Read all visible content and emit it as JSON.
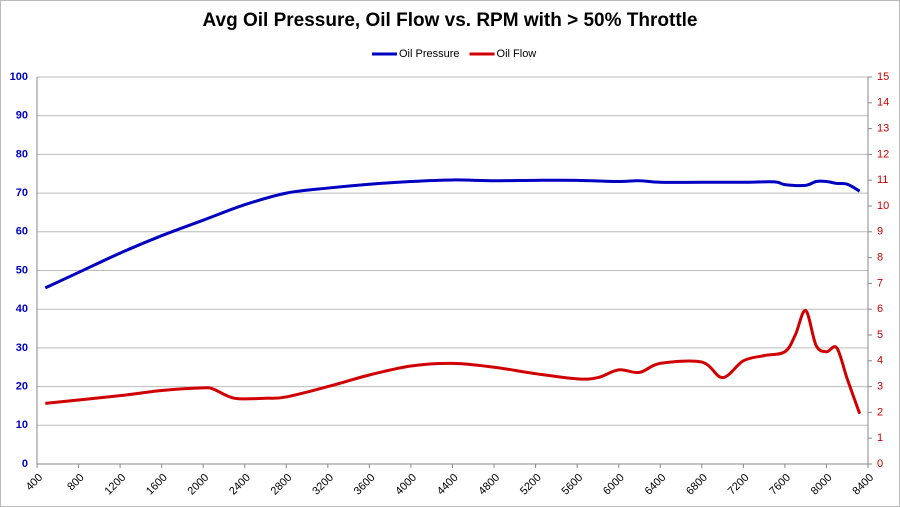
{
  "chart_data": {
    "type": "line",
    "title": "Avg Oil Pressure, Oil Flow vs. RPM with > 50% Throttle",
    "xlim": [
      400,
      8400
    ],
    "xticks": [
      400,
      800,
      1200,
      1600,
      2000,
      2400,
      2800,
      3200,
      3600,
      4000,
      4400,
      4800,
      5200,
      5600,
      6000,
      6400,
      6800,
      7200,
      7600,
      8000,
      8400
    ],
    "ylim": [
      0,
      100
    ],
    "yticks": [
      0,
      10,
      20,
      30,
      40,
      50,
      60,
      70,
      80,
      90,
      100
    ],
    "y2lim": [
      0,
      15
    ],
    "y2ticks": [
      0,
      1,
      2,
      3,
      4,
      5,
      6,
      7,
      8,
      9,
      10,
      11,
      12,
      13,
      14,
      15
    ],
    "grid": true,
    "legend": "top",
    "series": [
      {
        "name": "Oil Pressure",
        "color": "#0000c0",
        "x": [
          480,
          800,
          1200,
          1600,
          2000,
          2400,
          2800,
          3200,
          3600,
          4000,
          4400,
          4800,
          5200,
          5600,
          6000,
          6200,
          6400,
          6800,
          7200,
          7500,
          7600,
          7800,
          7900,
          8000,
          8100,
          8200,
          8320
        ],
        "values": [
          45.5,
          49.5,
          54.5,
          59,
          63,
          67,
          70,
          71.3,
          72.3,
          73,
          73.4,
          73.2,
          73.3,
          73.3,
          73,
          73.2,
          72.8,
          72.8,
          72.8,
          72.9,
          72.2,
          72,
          73,
          73,
          72.5,
          72.3,
          70.5
        ]
      },
      {
        "name": "Oil Flow",
        "color": "#d00000",
        "axis": "y2",
        "x": [
          480,
          1200,
          1600,
          2000,
          2100,
          2300,
          2600,
          2800,
          3200,
          3600,
          4000,
          4400,
          4800,
          5200,
          5600,
          5800,
          6000,
          6200,
          6400,
          6800,
          7000,
          7200,
          7400,
          7600,
          7700,
          7800,
          7900,
          8000,
          8100,
          8200,
          8320
        ],
        "values": [
          2.35,
          2.65,
          2.85,
          2.95,
          2.9,
          2.55,
          2.55,
          2.6,
          3.0,
          3.45,
          3.8,
          3.9,
          3.75,
          3.5,
          3.3,
          3.35,
          3.65,
          3.55,
          3.9,
          3.95,
          3.35,
          4.0,
          4.2,
          4.35,
          5.0,
          5.95,
          4.6,
          4.35,
          4.5,
          3.3,
          1.95
        ]
      }
    ]
  }
}
